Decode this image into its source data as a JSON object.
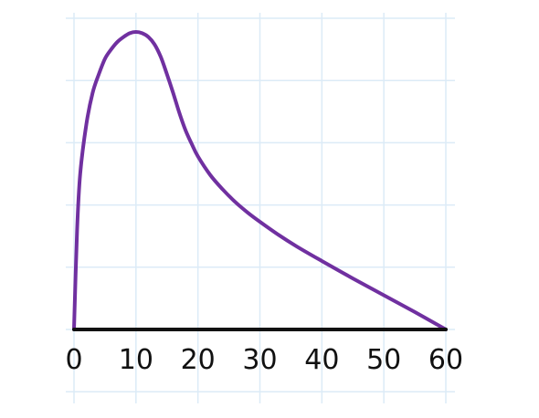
{
  "chart_data": {
    "type": "line",
    "title": "",
    "xlabel": "",
    "ylabel": "",
    "xlim": [
      0,
      60
    ],
    "ylim": [
      0,
      5
    ],
    "grid": true,
    "x_ticks": [
      0,
      10,
      20,
      30,
      40,
      50,
      60
    ],
    "x_tick_labels": [
      "0",
      "10",
      "20",
      "30",
      "40",
      "50",
      "60"
    ],
    "y_gridlines": [
      0,
      1,
      2,
      3,
      4,
      5
    ],
    "y_tick_labels": [],
    "series": [
      {
        "color": "#7030a0",
        "points": [
          [
            0,
            0.0
          ],
          [
            0.5,
            1.6
          ],
          [
            1,
            2.5
          ],
          [
            2,
            3.3
          ],
          [
            3,
            3.8
          ],
          [
            4,
            4.1
          ],
          [
            5,
            4.35
          ],
          [
            6,
            4.5
          ],
          [
            7,
            4.62
          ],
          [
            8,
            4.7
          ],
          [
            9,
            4.76
          ],
          [
            10,
            4.78
          ],
          [
            11,
            4.76
          ],
          [
            12,
            4.7
          ],
          [
            13,
            4.58
          ],
          [
            14,
            4.38
          ],
          [
            15,
            4.1
          ],
          [
            16,
            3.8
          ],
          [
            17,
            3.48
          ],
          [
            18,
            3.2
          ],
          [
            19,
            2.98
          ],
          [
            20,
            2.78
          ],
          [
            22,
            2.48
          ],
          [
            24,
            2.25
          ],
          [
            26,
            2.05
          ],
          [
            28,
            1.88
          ],
          [
            30,
            1.73
          ],
          [
            33,
            1.52
          ],
          [
            36,
            1.33
          ],
          [
            40,
            1.1
          ],
          [
            45,
            0.82
          ],
          [
            50,
            0.55
          ],
          [
            55,
            0.28
          ],
          [
            60,
            0.0
          ]
        ]
      }
    ]
  }
}
